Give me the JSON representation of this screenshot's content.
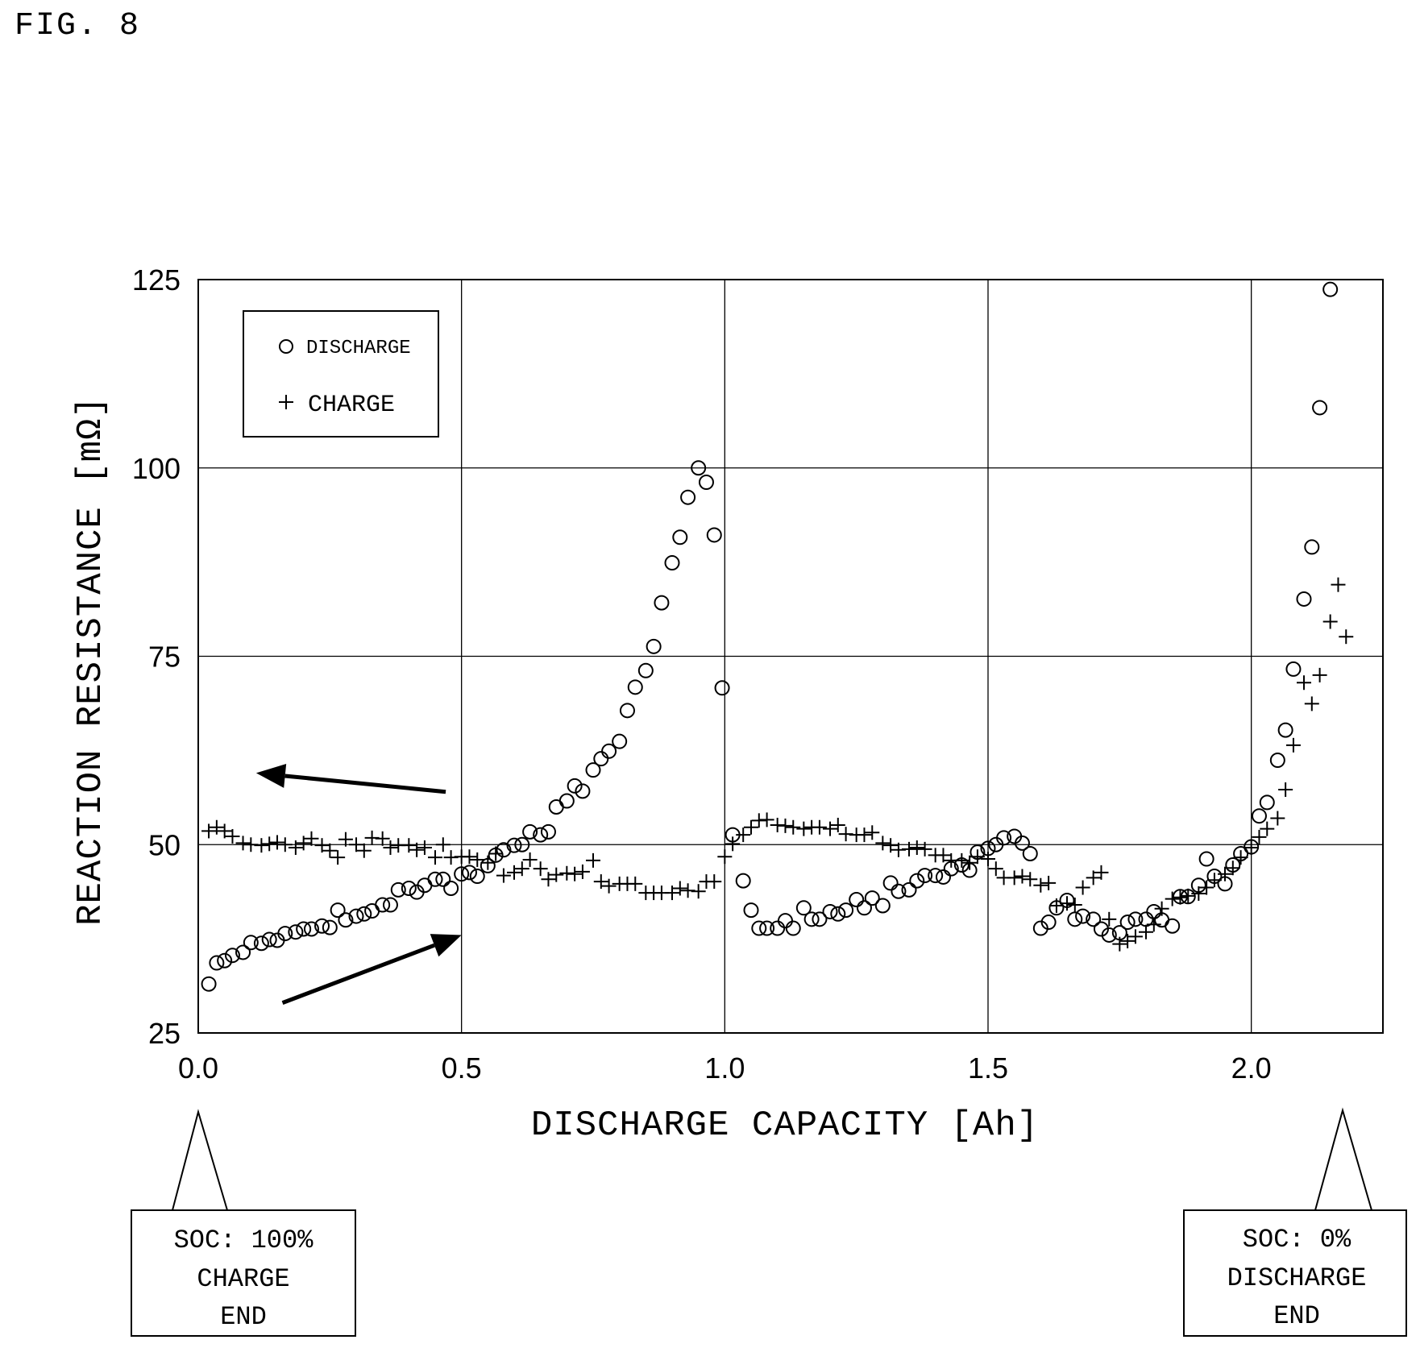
{
  "figure_label": "FIG. 8",
  "legend": {
    "discharge_label": "DISCHARGE",
    "charge_label": "CHARGE"
  },
  "callouts": {
    "left": [
      "SOC: 100%",
      "CHARGE",
      "END"
    ],
    "right": [
      "SOC: 0%",
      "DISCHARGE",
      "END"
    ]
  },
  "colors": {
    "ink": "#000000",
    "grid": "#000000",
    "background": "#ffffff"
  },
  "chart_data": {
    "type": "scatter",
    "xlabel": "DISCHARGE CAPACITY [Ah]",
    "ylabel": "REACTION RESISTANCE [mΩ]",
    "xlim": [
      0,
      2.25
    ],
    "ylim": [
      25,
      125
    ],
    "xticks": [
      0.0,
      0.5,
      1.0,
      1.5,
      2.0
    ],
    "xtick_labels": [
      "0.0",
      "0.5",
      "1.0",
      "1.5",
      "2.0"
    ],
    "yticks": [
      25,
      50,
      75,
      100,
      125
    ],
    "ytick_labels": [
      "25",
      "50",
      "75",
      "100",
      "125"
    ],
    "grid": true,
    "legend_position": "top-left",
    "arrows": [
      {
        "series": "CHARGE",
        "from": [
          0.47,
          57.0
        ],
        "to": [
          0.11,
          59.5
        ]
      },
      {
        "series": "DISCHARGE",
        "from": [
          0.16,
          29.0
        ],
        "to": [
          0.5,
          38.0
        ]
      }
    ],
    "series": [
      {
        "name": "DISCHARGE",
        "marker": "circle",
        "points": [
          [
            0.02,
            31.5
          ],
          [
            0.035,
            34.3
          ],
          [
            0.05,
            34.6
          ],
          [
            0.065,
            35.3
          ],
          [
            0.085,
            35.7
          ],
          [
            0.1,
            37.0
          ],
          [
            0.12,
            36.9
          ],
          [
            0.135,
            37.4
          ],
          [
            0.15,
            37.3
          ],
          [
            0.165,
            38.2
          ],
          [
            0.185,
            38.4
          ],
          [
            0.2,
            38.8
          ],
          [
            0.215,
            38.8
          ],
          [
            0.235,
            39.2
          ],
          [
            0.25,
            39.0
          ],
          [
            0.265,
            41.3
          ],
          [
            0.28,
            40.0
          ],
          [
            0.3,
            40.5
          ],
          [
            0.315,
            40.8
          ],
          [
            0.33,
            41.2
          ],
          [
            0.35,
            42.0
          ],
          [
            0.365,
            42.0
          ],
          [
            0.38,
            44.0
          ],
          [
            0.4,
            44.2
          ],
          [
            0.415,
            43.7
          ],
          [
            0.43,
            44.6
          ],
          [
            0.45,
            45.4
          ],
          [
            0.465,
            45.4
          ],
          [
            0.48,
            44.2
          ],
          [
            0.5,
            46.1
          ],
          [
            0.515,
            46.3
          ],
          [
            0.53,
            45.8
          ],
          [
            0.55,
            47.2
          ],
          [
            0.565,
            48.6
          ],
          [
            0.58,
            49.3
          ],
          [
            0.6,
            49.9
          ],
          [
            0.615,
            50.0
          ],
          [
            0.63,
            51.7
          ],
          [
            0.65,
            51.3
          ],
          [
            0.665,
            51.7
          ],
          [
            0.68,
            55.0
          ],
          [
            0.7,
            55.8
          ],
          [
            0.715,
            57.8
          ],
          [
            0.73,
            57.1
          ],
          [
            0.75,
            59.9
          ],
          [
            0.765,
            61.4
          ],
          [
            0.78,
            62.4
          ],
          [
            0.8,
            63.7
          ],
          [
            0.815,
            67.8
          ],
          [
            0.83,
            70.9
          ],
          [
            0.85,
            73.1
          ],
          [
            0.865,
            76.3
          ],
          [
            0.88,
            82.1
          ],
          [
            0.9,
            87.4
          ],
          [
            0.915,
            90.8
          ],
          [
            0.93,
            96.1
          ],
          [
            0.95,
            100.0
          ],
          [
            0.965,
            98.1
          ],
          [
            0.98,
            91.1
          ],
          [
            0.995,
            70.8
          ],
          [
            1.015,
            51.3
          ],
          [
            1.035,
            45.2
          ],
          [
            1.05,
            41.3
          ],
          [
            1.065,
            38.9
          ],
          [
            1.08,
            38.9
          ],
          [
            1.1,
            38.9
          ],
          [
            1.115,
            39.9
          ],
          [
            1.13,
            38.9
          ],
          [
            1.15,
            41.6
          ],
          [
            1.165,
            40.1
          ],
          [
            1.18,
            40.1
          ],
          [
            1.2,
            41.1
          ],
          [
            1.215,
            40.8
          ],
          [
            1.23,
            41.3
          ],
          [
            1.25,
            42.7
          ],
          [
            1.265,
            41.6
          ],
          [
            1.28,
            42.9
          ],
          [
            1.3,
            41.9
          ],
          [
            1.315,
            44.9
          ],
          [
            1.33,
            43.8
          ],
          [
            1.35,
            44.0
          ],
          [
            1.365,
            45.2
          ],
          [
            1.38,
            45.9
          ],
          [
            1.4,
            45.9
          ],
          [
            1.415,
            45.7
          ],
          [
            1.43,
            46.8
          ],
          [
            1.45,
            47.3
          ],
          [
            1.465,
            46.6
          ],
          [
            1.48,
            49.0
          ],
          [
            1.5,
            49.5
          ],
          [
            1.515,
            50.0
          ],
          [
            1.53,
            50.9
          ],
          [
            1.55,
            51.1
          ],
          [
            1.565,
            50.2
          ],
          [
            1.58,
            48.8
          ],
          [
            1.6,
            38.9
          ],
          [
            1.615,
            39.7
          ],
          [
            1.63,
            41.6
          ],
          [
            1.65,
            42.6
          ],
          [
            1.665,
            40.1
          ],
          [
            1.68,
            40.5
          ],
          [
            1.7,
            40.1
          ],
          [
            1.715,
            38.8
          ],
          [
            1.73,
            38.0
          ],
          [
            1.75,
            38.3
          ],
          [
            1.765,
            39.7
          ],
          [
            1.78,
            40.1
          ],
          [
            1.8,
            40.1
          ],
          [
            1.815,
            41.1
          ],
          [
            1.83,
            40.0
          ],
          [
            1.85,
            39.2
          ],
          [
            1.865,
            43.1
          ],
          [
            1.88,
            43.1
          ],
          [
            1.9,
            44.6
          ],
          [
            1.915,
            48.1
          ],
          [
            1.93,
            45.8
          ],
          [
            1.95,
            44.8
          ],
          [
            1.965,
            47.3
          ],
          [
            1.98,
            48.8
          ],
          [
            2.0,
            49.7
          ],
          [
            2.015,
            53.8
          ],
          [
            2.03,
            55.6
          ],
          [
            2.05,
            61.2
          ],
          [
            2.065,
            65.2
          ],
          [
            2.08,
            73.3
          ],
          [
            2.1,
            82.6
          ],
          [
            2.115,
            89.5
          ],
          [
            2.13,
            108.0
          ],
          [
            2.15,
            123.7
          ]
        ]
      },
      {
        "name": "CHARGE",
        "marker": "plus",
        "points": [
          [
            0.02,
            51.8
          ],
          [
            0.035,
            52.3
          ],
          [
            0.05,
            51.8
          ],
          [
            0.065,
            51.1
          ],
          [
            0.085,
            50.2
          ],
          [
            0.1,
            50.0
          ],
          [
            0.12,
            49.9
          ],
          [
            0.135,
            50.1
          ],
          [
            0.15,
            50.3
          ],
          [
            0.165,
            50.0
          ],
          [
            0.185,
            49.6
          ],
          [
            0.2,
            50.2
          ],
          [
            0.215,
            50.8
          ],
          [
            0.235,
            49.9
          ],
          [
            0.25,
            49.2
          ],
          [
            0.265,
            48.3
          ],
          [
            0.28,
            50.7
          ],
          [
            0.3,
            50.0
          ],
          [
            0.315,
            49.2
          ],
          [
            0.33,
            50.9
          ],
          [
            0.35,
            50.8
          ],
          [
            0.365,
            49.6
          ],
          [
            0.38,
            49.9
          ],
          [
            0.4,
            49.9
          ],
          [
            0.415,
            49.3
          ],
          [
            0.43,
            49.6
          ],
          [
            0.45,
            48.3
          ],
          [
            0.465,
            50.0
          ],
          [
            0.48,
            48.3
          ],
          [
            0.5,
            48.4
          ],
          [
            0.515,
            48.4
          ],
          [
            0.53,
            48.0
          ],
          [
            0.55,
            47.6
          ],
          [
            0.565,
            48.8
          ],
          [
            0.58,
            45.9
          ],
          [
            0.6,
            46.3
          ],
          [
            0.615,
            46.8
          ],
          [
            0.63,
            48.0
          ],
          [
            0.65,
            46.8
          ],
          [
            0.665,
            45.4
          ],
          [
            0.68,
            46.0
          ],
          [
            0.7,
            46.2
          ],
          [
            0.715,
            46.1
          ],
          [
            0.73,
            46.4
          ],
          [
            0.75,
            47.9
          ],
          [
            0.765,
            45.1
          ],
          [
            0.78,
            44.5
          ],
          [
            0.8,
            44.8
          ],
          [
            0.815,
            44.8
          ],
          [
            0.83,
            44.8
          ],
          [
            0.85,
            43.6
          ],
          [
            0.865,
            43.6
          ],
          [
            0.88,
            43.6
          ],
          [
            0.9,
            43.6
          ],
          [
            0.915,
            44.2
          ],
          [
            0.93,
            43.9
          ],
          [
            0.95,
            43.8
          ],
          [
            0.965,
            45.1
          ],
          [
            0.98,
            45.1
          ],
          [
            1.0,
            48.4
          ],
          [
            1.015,
            50.1
          ],
          [
            1.035,
            51.3
          ],
          [
            1.05,
            52.3
          ],
          [
            1.065,
            53.2
          ],
          [
            1.08,
            53.3
          ],
          [
            1.1,
            52.6
          ],
          [
            1.115,
            52.5
          ],
          [
            1.13,
            52.3
          ],
          [
            1.15,
            52.1
          ],
          [
            1.165,
            52.3
          ],
          [
            1.18,
            52.3
          ],
          [
            1.2,
            52.1
          ],
          [
            1.215,
            52.6
          ],
          [
            1.23,
            51.4
          ],
          [
            1.25,
            51.3
          ],
          [
            1.265,
            51.3
          ],
          [
            1.28,
            51.6
          ],
          [
            1.3,
            50.2
          ],
          [
            1.315,
            49.9
          ],
          [
            1.33,
            49.3
          ],
          [
            1.35,
            49.4
          ],
          [
            1.365,
            49.6
          ],
          [
            1.38,
            49.4
          ],
          [
            1.4,
            48.6
          ],
          [
            1.415,
            48.6
          ],
          [
            1.43,
            47.9
          ],
          [
            1.45,
            47.9
          ],
          [
            1.465,
            47.6
          ],
          [
            1.48,
            48.4
          ],
          [
            1.5,
            48.1
          ],
          [
            1.515,
            46.8
          ],
          [
            1.53,
            45.6
          ],
          [
            1.55,
            45.6
          ],
          [
            1.565,
            45.8
          ],
          [
            1.58,
            45.4
          ],
          [
            1.6,
            44.6
          ],
          [
            1.615,
            44.9
          ],
          [
            1.63,
            41.9
          ],
          [
            1.65,
            42.2
          ],
          [
            1.665,
            42.0
          ],
          [
            1.68,
            44.3
          ],
          [
            1.7,
            45.6
          ],
          [
            1.715,
            46.3
          ],
          [
            1.73,
            40.1
          ],
          [
            1.75,
            36.8
          ],
          [
            1.765,
            37.2
          ],
          [
            1.78,
            37.8
          ],
          [
            1.8,
            38.4
          ],
          [
            1.815,
            39.4
          ],
          [
            1.83,
            41.5
          ],
          [
            1.85,
            42.8
          ],
          [
            1.865,
            43.0
          ],
          [
            1.88,
            43.2
          ],
          [
            1.9,
            43.5
          ],
          [
            1.915,
            44.3
          ],
          [
            1.93,
            45.3
          ],
          [
            1.95,
            46.1
          ],
          [
            1.965,
            46.9
          ],
          [
            1.98,
            48.3
          ],
          [
            2.0,
            49.6
          ],
          [
            2.015,
            51.0
          ],
          [
            2.03,
            52.1
          ],
          [
            2.05,
            53.5
          ],
          [
            2.065,
            57.3
          ],
          [
            2.08,
            63.2
          ],
          [
            2.1,
            71.5
          ],
          [
            2.115,
            68.7
          ],
          [
            2.13,
            72.5
          ],
          [
            2.15,
            79.6
          ],
          [
            2.165,
            84.5
          ],
          [
            2.18,
            77.6
          ]
        ]
      }
    ]
  }
}
